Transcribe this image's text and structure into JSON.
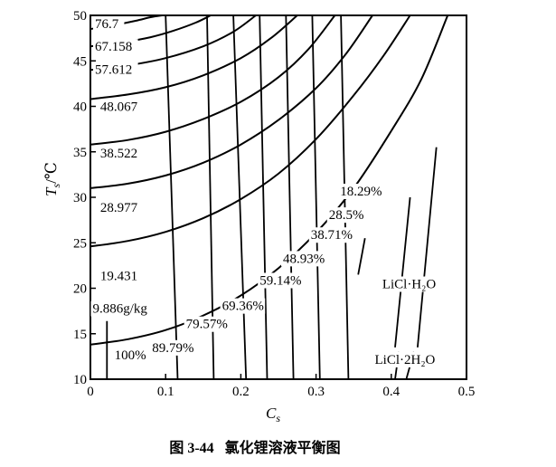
{
  "chart_data": {
    "type": "line",
    "caption": "图 3-44   氯化锂溶液平衡图",
    "xlabel": "C",
    "xlabel_sub": "s",
    "ylabel": "T",
    "ylabel_sub": "s",
    "ylabel_unit": "/℃",
    "xlim": [
      0,
      0.5
    ],
    "ylim": [
      10,
      50
    ],
    "x_ticks": [
      "0",
      "0.1",
      "0.2",
      "0.3",
      "0.4",
      "0.5"
    ],
    "y_ticks": [
      "10",
      "15",
      "20",
      "25",
      "30",
      "35",
      "40",
      "45",
      "50"
    ],
    "vapor_pressure_curves": {
      "unit_note": "9.886g/kg",
      "labels": [
        "76.7",
        "67.158",
        "57.612",
        "48.067",
        "38.522",
        "28.977",
        "19.431",
        "9.886g/kg"
      ],
      "series": [
        {
          "name": "76.7",
          "x": [
            0.0,
            0.03,
            0.06,
            0.08,
            0.095
          ],
          "y": [
            48.5,
            48.9,
            49.4,
            49.8,
            50.0
          ]
        },
        {
          "name": "67.158",
          "x": [
            0.0,
            0.04,
            0.08,
            0.11,
            0.14,
            0.16
          ],
          "y": [
            46.6,
            47.0,
            47.6,
            48.3,
            49.2,
            50.0
          ]
        },
        {
          "name": "57.612",
          "x": [
            0.0,
            0.05,
            0.1,
            0.15,
            0.19,
            0.22
          ],
          "y": [
            44.0,
            44.5,
            45.3,
            46.6,
            48.2,
            50.0
          ]
        },
        {
          "name": "48.067",
          "x": [
            0.0,
            0.05,
            0.1,
            0.15,
            0.2,
            0.24,
            0.275
          ],
          "y": [
            40.8,
            41.3,
            42.1,
            43.4,
            45.3,
            47.5,
            50.0
          ]
        },
        {
          "name": "38.522",
          "x": [
            0.0,
            0.05,
            0.1,
            0.15,
            0.2,
            0.25,
            0.29,
            0.325
          ],
          "y": [
            35.8,
            36.3,
            37.2,
            38.6,
            40.5,
            43.2,
            46.3,
            50.0
          ]
        },
        {
          "name": "28.977",
          "x": [
            0.0,
            0.05,
            0.1,
            0.15,
            0.2,
            0.25,
            0.3,
            0.34,
            0.375
          ],
          "y": [
            31.0,
            31.5,
            32.4,
            33.8,
            35.8,
            38.5,
            42.0,
            45.8,
            50.0
          ]
        },
        {
          "name": "19.431",
          "x": [
            0.0,
            0.05,
            0.1,
            0.15,
            0.2,
            0.25,
            0.3,
            0.35,
            0.39,
            0.425
          ],
          "y": [
            24.6,
            25.2,
            26.2,
            27.7,
            29.8,
            32.6,
            36.4,
            41.2,
            45.6,
            50.0
          ]
        },
        {
          "name": "9.886g/kg",
          "x": [
            0.0,
            0.05,
            0.1,
            0.15,
            0.2,
            0.25,
            0.3,
            0.35,
            0.4,
            0.44,
            0.475
          ],
          "y": [
            13.8,
            14.4,
            15.4,
            17.0,
            19.2,
            22.2,
            26.1,
            31.0,
            37.3,
            43.0,
            50.0
          ]
        }
      ]
    },
    "concentration_lines": {
      "labels": [
        "100%",
        "89.79%",
        "79.57%",
        "69.36%",
        "59.14%",
        "48.93%",
        "38.71%",
        "28.5%",
        "18.29%"
      ],
      "series": [
        {
          "name": "100%",
          "x": [
            0.022,
            0.022
          ],
          "y": [
            10,
            16.4
          ]
        },
        {
          "name": "89.79%",
          "x": [
            0.116,
            0.1
          ],
          "y": [
            10,
            50
          ]
        },
        {
          "name": "79.57%",
          "x": [
            0.164,
            0.155
          ],
          "y": [
            10,
            50
          ]
        },
        {
          "name": "69.36%",
          "x": [
            0.207,
            0.19
          ],
          "y": [
            10,
            50
          ]
        },
        {
          "name": "59.14%",
          "x": [
            0.235,
            0.225
          ],
          "y": [
            10,
            50
          ]
        },
        {
          "name": "48.93%",
          "x": [
            0.27,
            0.26
          ],
          "y": [
            10,
            50
          ]
        },
        {
          "name": "38.71%",
          "x": [
            0.305,
            0.295
          ],
          "y": [
            10,
            50
          ]
        },
        {
          "name": "28.5%",
          "x": [
            0.343,
            0.333
          ],
          "y": [
            10,
            50
          ]
        },
        {
          "name": "18.29%",
          "x": [
            0.356,
            0.365
          ],
          "y": [
            21.5,
            25.5
          ]
        }
      ]
    },
    "crystal_lines": {
      "labels": [
        "LiCl·H₂O",
        "LiCl·2H₂O"
      ],
      "series": [
        {
          "name": "LiCl·H₂O",
          "x": [
            0.405,
            0.425
          ],
          "y": [
            13.5,
            30.0
          ]
        },
        {
          "name": "LiCl·H₂O",
          "x": [
            0.435,
            0.46
          ],
          "y": [
            13.5,
            35.5
          ]
        },
        {
          "name": "LiCl·2H₂O",
          "x": [
            0.405,
            0.41
          ],
          "y": [
            10,
            13.0
          ]
        },
        {
          "name": "LiCl·2H₂O",
          "x": [
            0.42,
            0.43
          ],
          "y": [
            10,
            13.0
          ]
        }
      ]
    }
  }
}
